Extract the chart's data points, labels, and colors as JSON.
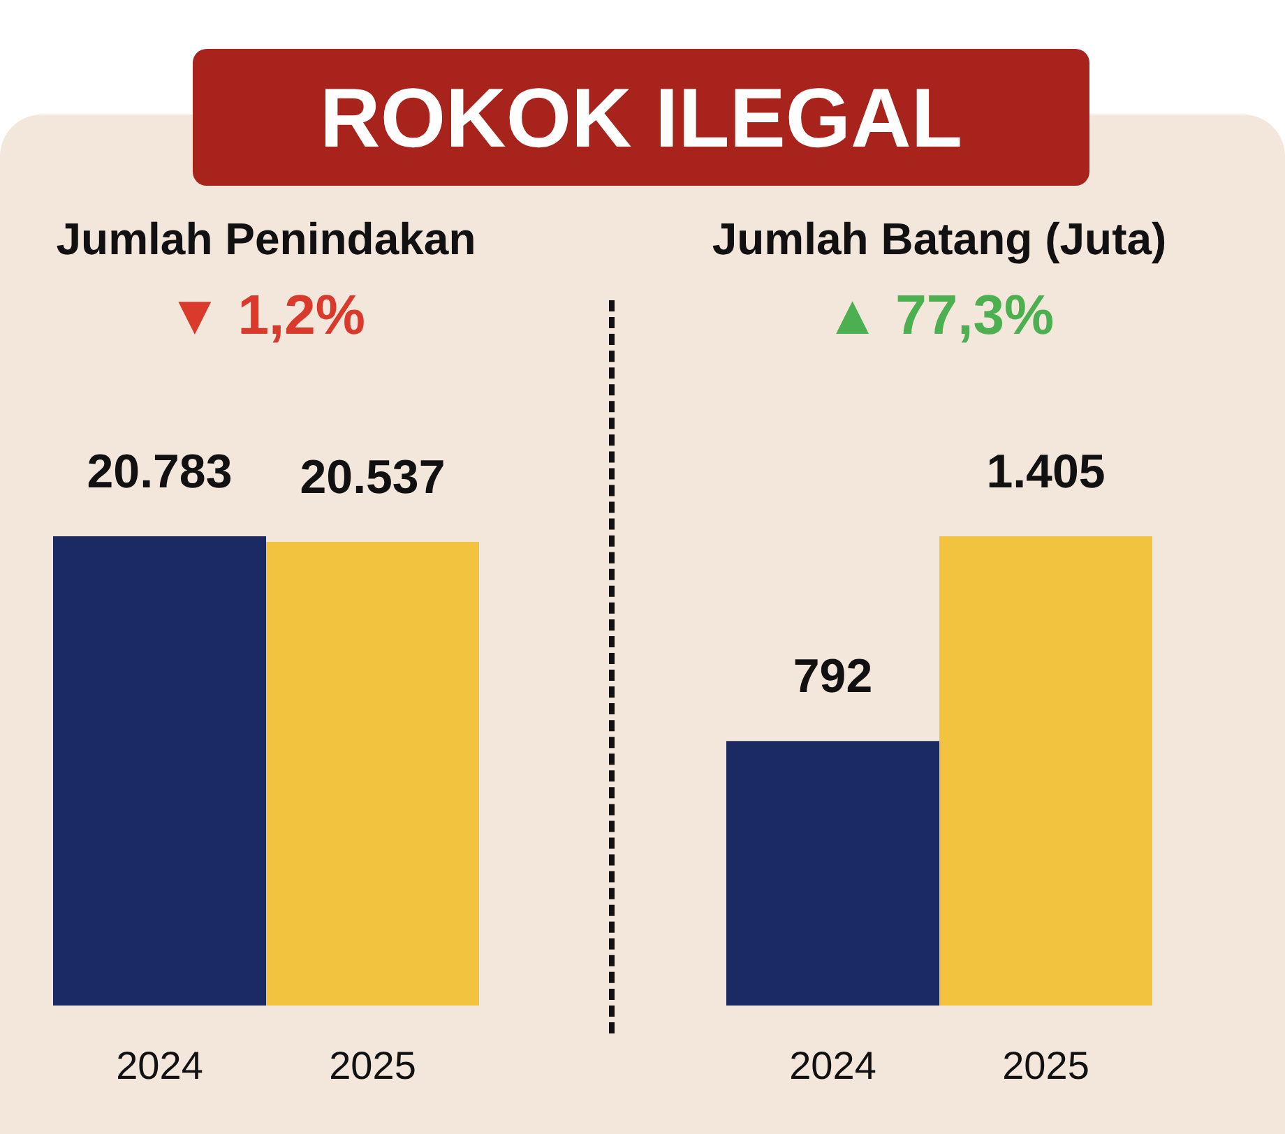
{
  "chart_data": [
    {
      "type": "bar",
      "title": "Jumlah Penindakan",
      "subtitle": "▼ 1,2%",
      "annotations": [
        "ROKOK ILEGAL"
      ],
      "categories": [
        "2024",
        "2025"
      ],
      "values": [
        20783,
        20537
      ],
      "colors": [
        "#1b2a63",
        "#f2c33f"
      ],
      "value_labels": [
        "20.783",
        "20.537"
      ]
    },
    {
      "type": "bar",
      "title": "Jumlah Batang (Juta)",
      "subtitle": "▲ 77,3%",
      "categories": [
        "2024",
        "2025"
      ],
      "values": [
        792,
        1405
      ],
      "colors": [
        "#1b2a63",
        "#f2c33f"
      ],
      "value_labels": [
        "792",
        "1.405"
      ]
    }
  ]
}
